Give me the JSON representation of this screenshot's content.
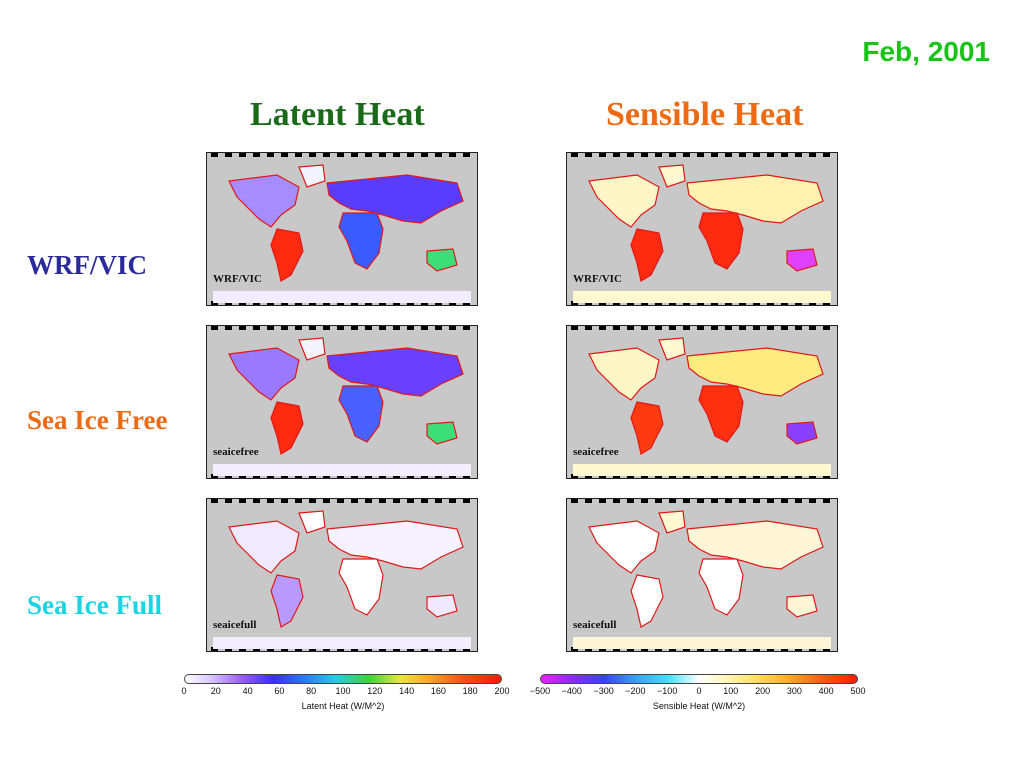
{
  "date": "Feb, 2001",
  "columns": {
    "latent": "Latent Heat",
    "sensible": "Sensible Heat"
  },
  "rows": [
    {
      "label": "WRF/VIC",
      "color": "#2a2a9a",
      "map_label": "WRF/VIC"
    },
    {
      "label": "Sea Ice Free",
      "color": "#ef6a14",
      "map_label": "seaicefree"
    },
    {
      "label": "Sea Ice Full",
      "color": "#1ad4e6",
      "map_label": "seaicefull"
    }
  ],
  "colorbars": {
    "latent": {
      "title": "Latent Heat (W/M^2)",
      "ticks": [
        "0",
        "20",
        "40",
        "60",
        "80",
        "100",
        "120",
        "140",
        "160",
        "180",
        "200"
      ]
    },
    "sensible": {
      "title": "Sensible Heat (W/M^2)",
      "ticks": [
        "−500",
        "−400",
        "−300",
        "−200",
        "−100",
        "0",
        "100",
        "200",
        "300",
        "400",
        "500"
      ]
    }
  }
}
